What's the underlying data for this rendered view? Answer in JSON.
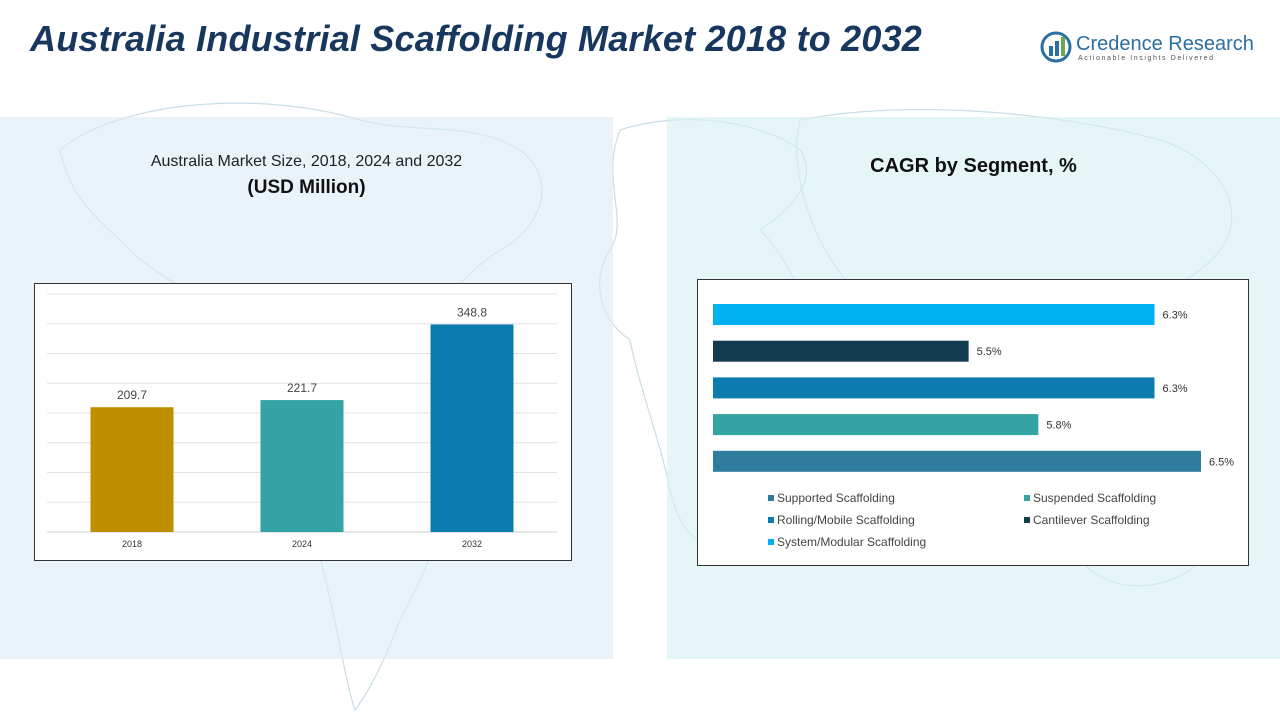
{
  "header": {
    "title": "Australia Industrial Scaffolding Market 2018 to 2032",
    "logo_name": "Credence Research",
    "logo_tagline": "Actionable Insights Delivered"
  },
  "colors": {
    "title": "#17375e",
    "bar_2018": "#bf8f00",
    "bar_2024": "#33a3a3",
    "bar_2032": "#0b7bb0",
    "seg_supported": "#2e7d9e",
    "seg_suspended": "#33a3a3",
    "seg_rolling": "#0b7bb0",
    "seg_cantilever": "#143c50",
    "seg_system": "#00b0f0"
  },
  "chart_data": [
    {
      "type": "bar",
      "title": "Australia Market Size, 2018, 2024 and 2032",
      "subtitle": "(USD Million)",
      "categories": [
        "2018",
        "2024",
        "2032"
      ],
      "values": [
        209.7,
        221.7,
        348.8
      ],
      "value_labels": [
        "209.7",
        "221.7",
        "348.8"
      ],
      "ylim": [
        0,
        400
      ],
      "grid": true,
      "legend": "none"
    },
    {
      "type": "bar",
      "orientation": "horizontal",
      "title": "CAGR by Segment, %",
      "categories": [
        "System/Modular Scaffolding",
        "Cantilever Scaffolding",
        "Rolling/Mobile Scaffolding",
        "Suspended Scaffolding",
        "Supported Scaffolding"
      ],
      "values": [
        6.3,
        5.5,
        6.3,
        5.8,
        6.5
      ],
      "value_labels": [
        "6.3%",
        "5.5%",
        "6.3%",
        "5.8%",
        "6.5%"
      ],
      "xlim": [
        4.4,
        6.5
      ],
      "legend": "bottom",
      "legend_entries": [
        "Supported Scaffolding",
        "Suspended Scaffolding",
        "Rolling/Mobile Scaffolding",
        "Cantilever Scaffolding",
        "System/Modular Scaffolding"
      ]
    }
  ]
}
